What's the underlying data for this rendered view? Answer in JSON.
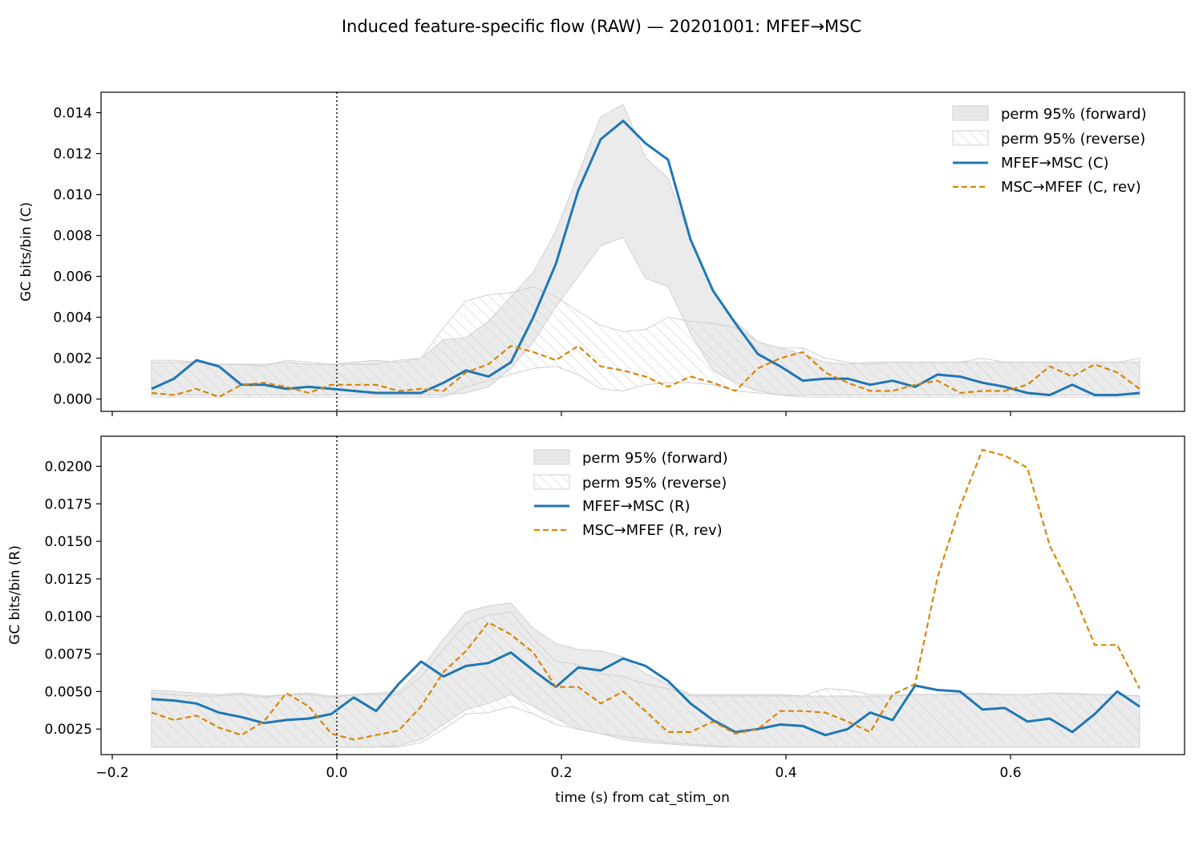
{
  "figure": {
    "title": "Induced feature-specific flow (RAW) — 20201001: MFEF→MSC",
    "xlabel": "time (s) from cat_stim_on"
  },
  "colors": {
    "forward": "#1f77b4",
    "reverse": "#d6860a",
    "band_fill": "#e8e8e8",
    "band_edge": "#d0d0d0",
    "hatch": "#c8c8c8",
    "axes": "#000000"
  },
  "chart_data": [
    {
      "type": "line",
      "ylabel": "GC bits/bin (C)",
      "xlim": [
        -0.21,
        0.755
      ],
      "ylim": [
        -0.0006,
        0.015
      ],
      "xticks": [
        -0.2,
        0.0,
        0.2,
        0.4,
        0.6
      ],
      "xtick_labels": [
        "",
        "",
        "",
        "",
        ""
      ],
      "yticks": [
        0,
        0.002,
        0.004,
        0.006,
        0.008,
        0.01,
        0.012,
        0.014
      ],
      "ytick_labels": [
        "0.000",
        "0.002",
        "0.004",
        "0.006",
        "0.008",
        "0.010",
        "0.012",
        "0.014"
      ],
      "vline_x": 0.0,
      "legend_placement": "top-right",
      "legend": [
        "perm 95% (forward)",
        "perm 95% (reverse)",
        "MFEF→MSC (C)",
        "MSC→MFEF (C, rev)"
      ],
      "x": [
        -0.165,
        -0.145,
        -0.125,
        -0.105,
        -0.085,
        -0.065,
        -0.045,
        -0.025,
        -0.005,
        0.015,
        0.035,
        0.055,
        0.075,
        0.095,
        0.115,
        0.135,
        0.155,
        0.175,
        0.195,
        0.215,
        0.235,
        0.255,
        0.275,
        0.295,
        0.315,
        0.335,
        0.355,
        0.375,
        0.395,
        0.415,
        0.435,
        0.455,
        0.475,
        0.495,
        0.515,
        0.535,
        0.555,
        0.575,
        0.595,
        0.615,
        0.635,
        0.655,
        0.675,
        0.695,
        0.715
      ],
      "bands": [
        {
          "name": "perm 95% (forward)",
          "lower": [
            0.0002,
            0.0002,
            0.0002,
            0.0002,
            0.0002,
            0.0002,
            0.0002,
            0.0002,
            0.0002,
            0.0002,
            0.0002,
            0.0002,
            0.0002,
            0.0002,
            0.0003,
            0.0006,
            0.0015,
            0.0028,
            0.0045,
            0.006,
            0.0075,
            0.0079,
            0.0059,
            0.0055,
            0.0032,
            0.0014,
            0.0008,
            0.0004,
            0.0002,
            0.0002,
            0.0002,
            0.0002,
            0.0002,
            0.0002,
            0.0002,
            0.0002,
            0.0002,
            0.0002,
            0.0002,
            0.0002,
            0.0002,
            0.0002,
            0.0002,
            0.0002,
            0.0002
          ],
          "upper": [
            0.0018,
            0.0018,
            0.0018,
            0.0017,
            0.0017,
            0.0017,
            0.0018,
            0.0017,
            0.0017,
            0.0018,
            0.0019,
            0.0018,
            0.002,
            0.0029,
            0.003,
            0.0038,
            0.005,
            0.0062,
            0.0082,
            0.011,
            0.0138,
            0.0144,
            0.0118,
            0.0108,
            0.0078,
            0.0053,
            0.0038,
            0.0028,
            0.0025,
            0.0022,
            0.0018,
            0.0017,
            0.0018,
            0.0018,
            0.0018,
            0.0018,
            0.0018,
            0.0018,
            0.0018,
            0.0018,
            0.0018,
            0.0018,
            0.0018,
            0.0018,
            0.0018
          ]
        },
        {
          "name": "perm 95% (reverse)",
          "lower": [
            0.0001,
            0.0001,
            0.0001,
            0.0001,
            0.0001,
            0.0001,
            0.0001,
            0.0001,
            0.0001,
            0.0001,
            0.0001,
            0.0001,
            0.0001,
            0.0001,
            0.0006,
            0.0009,
            0.0012,
            0.0015,
            0.0016,
            0.0012,
            0.0005,
            0.0004,
            0.0007,
            0.0008,
            0.0008,
            0.0007,
            0.0004,
            0.0003,
            0.0002,
            0.0001,
            0.0001,
            0.0001,
            0.0001,
            0.0001,
            0.0001,
            0.0001,
            0.0001,
            0.0001,
            0.0001,
            0.0001,
            0.0001,
            0.0001,
            0.0001,
            0.0001,
            0.0001
          ],
          "upper": [
            0.0019,
            0.0019,
            0.0018,
            0.0017,
            0.0017,
            0.0016,
            0.0019,
            0.0018,
            0.0017,
            0.0017,
            0.0017,
            0.0019,
            0.002,
            0.0035,
            0.0048,
            0.0051,
            0.0052,
            0.0055,
            0.005,
            0.0043,
            0.0036,
            0.0033,
            0.0034,
            0.004,
            0.0038,
            0.0037,
            0.0035,
            0.0028,
            0.0025,
            0.0025,
            0.002,
            0.0018,
            0.0017,
            0.0018,
            0.0018,
            0.0018,
            0.0018,
            0.002,
            0.0018,
            0.0018,
            0.0018,
            0.0018,
            0.0018,
            0.0018,
            0.002
          ]
        }
      ],
      "series": [
        {
          "name": "MFEF→MSC (C)",
          "style": "solid",
          "values": [
            0.0005,
            0.001,
            0.0019,
            0.0016,
            0.0007,
            0.0007,
            0.0005,
            0.0006,
            0.0005,
            0.0004,
            0.0003,
            0.0003,
            0.0003,
            0.0008,
            0.0014,
            0.0011,
            0.0018,
            0.004,
            0.0066,
            0.0102,
            0.0127,
            0.0136,
            0.0125,
            0.0117,
            0.0078,
            0.0053,
            0.0037,
            0.0022,
            0.0016,
            0.0009,
            0.001,
            0.001,
            0.0007,
            0.0009,
            0.0006,
            0.0012,
            0.0011,
            0.0008,
            0.0006,
            0.0003,
            0.0002,
            0.0007,
            0.0002,
            0.0002,
            0.0003
          ]
        },
        {
          "name": "MSC→MFEF (C, rev)",
          "style": "dashed",
          "values": [
            0.0003,
            0.0002,
            0.0005,
            0.0001,
            0.0007,
            0.0008,
            0.0006,
            0.0003,
            0.0007,
            0.0007,
            0.0007,
            0.0004,
            0.0005,
            0.0004,
            0.0013,
            0.0017,
            0.0026,
            0.0023,
            0.0019,
            0.0026,
            0.0016,
            0.0014,
            0.0011,
            0.0006,
            0.0011,
            0.0008,
            0.0004,
            0.0015,
            0.002,
            0.0023,
            0.0013,
            0.0008,
            0.0004,
            0.0004,
            0.0007,
            0.0009,
            0.0003,
            0.0004,
            0.0004,
            0.0007,
            0.0016,
            0.0011,
            0.0017,
            0.0013,
            0.0005
          ]
        }
      ]
    },
    {
      "type": "line",
      "ylabel": "GC bits/bin (R)",
      "xlim": [
        -0.21,
        0.755
      ],
      "ylim": [
        0.0008,
        0.022
      ],
      "xticks": [
        -0.2,
        0.0,
        0.2,
        0.4,
        0.6
      ],
      "xtick_labels": [
        "−0.2",
        "0.0",
        "0.2",
        "0.4",
        "0.6"
      ],
      "yticks": [
        0.0025,
        0.005,
        0.0075,
        0.01,
        0.0125,
        0.015,
        0.0175,
        0.02
      ],
      "ytick_labels": [
        "0.0025",
        "0.0050",
        "0.0075",
        "0.0100",
        "0.0125",
        "0.0150",
        "0.0175",
        "0.0200"
      ],
      "vline_x": 0.0,
      "legend_placement": "top-center",
      "legend": [
        "perm 95% (forward)",
        "perm 95% (reverse)",
        "MFEF→MSC (R)",
        "MSC→MFEF (R, rev)"
      ],
      "x": [
        -0.165,
        -0.145,
        -0.125,
        -0.105,
        -0.085,
        -0.065,
        -0.045,
        -0.025,
        -0.005,
        0.015,
        0.035,
        0.055,
        0.075,
        0.095,
        0.115,
        0.135,
        0.155,
        0.175,
        0.195,
        0.215,
        0.235,
        0.255,
        0.275,
        0.295,
        0.315,
        0.335,
        0.355,
        0.375,
        0.395,
        0.415,
        0.435,
        0.455,
        0.475,
        0.495,
        0.515,
        0.535,
        0.555,
        0.575,
        0.595,
        0.615,
        0.635,
        0.655,
        0.675,
        0.695,
        0.715
      ],
      "bands": [
        {
          "name": "perm 95% (forward)",
          "lower": [
            0.0013,
            0.0013,
            0.0013,
            0.0013,
            0.0013,
            0.0013,
            0.0013,
            0.0013,
            0.0013,
            0.0013,
            0.0013,
            0.0014,
            0.0018,
            0.0028,
            0.0038,
            0.0042,
            0.0048,
            0.004,
            0.0032,
            0.0025,
            0.0022,
            0.0018,
            0.0016,
            0.0015,
            0.0014,
            0.0013,
            0.0013,
            0.0013,
            0.0013,
            0.0013,
            0.0013,
            0.0013,
            0.0013,
            0.0013,
            0.0013,
            0.0013,
            0.0013,
            0.0013,
            0.0013,
            0.0013,
            0.0013,
            0.0013,
            0.0013,
            0.0013,
            0.0013
          ],
          "upper": [
            0.0051,
            0.005,
            0.0049,
            0.0048,
            0.0049,
            0.0047,
            0.0048,
            0.0049,
            0.0047,
            0.0048,
            0.0049,
            0.005,
            0.0065,
            0.0085,
            0.0103,
            0.0107,
            0.0109,
            0.0092,
            0.0082,
            0.0078,
            0.0077,
            0.0073,
            0.0062,
            0.0055,
            0.0048,
            0.0048,
            0.0048,
            0.0048,
            0.0048,
            0.0047,
            0.0047,
            0.0047,
            0.0047,
            0.0047,
            0.0048,
            0.0048,
            0.0049,
            0.0048,
            0.0048,
            0.0048,
            0.0049,
            0.0048,
            0.0048,
            0.0048,
            0.0047
          ]
        },
        {
          "name": "perm 95% (reverse)",
          "lower": [
            0.0013,
            0.0013,
            0.0013,
            0.0013,
            0.0013,
            0.0013,
            0.0013,
            0.0013,
            0.0013,
            0.0013,
            0.0013,
            0.0013,
            0.0016,
            0.0025,
            0.0035,
            0.0036,
            0.004,
            0.0035,
            0.0028,
            0.0025,
            0.0022,
            0.002,
            0.0018,
            0.0016,
            0.0015,
            0.0014,
            0.0013,
            0.0013,
            0.0013,
            0.0013,
            0.0013,
            0.0013,
            0.0013,
            0.0013,
            0.0013,
            0.0013,
            0.0013,
            0.0013,
            0.0013,
            0.0013,
            0.0013,
            0.0013,
            0.0013,
            0.0013,
            0.0013
          ],
          "upper": [
            0.0049,
            0.0048,
            0.0047,
            0.0047,
            0.0048,
            0.0046,
            0.0048,
            0.0048,
            0.0046,
            0.0048,
            0.0048,
            0.0048,
            0.006,
            0.0078,
            0.0095,
            0.0101,
            0.0103,
            0.0085,
            0.007,
            0.0068,
            0.0062,
            0.006,
            0.0055,
            0.0052,
            0.0047,
            0.0047,
            0.0047,
            0.0047,
            0.0047,
            0.0047,
            0.0052,
            0.0051,
            0.0048,
            0.0048,
            0.0048,
            0.0048,
            0.0048,
            0.0049,
            0.0048,
            0.0048,
            0.0049,
            0.0049,
            0.0048,
            0.0048,
            0.0047
          ]
        }
      ],
      "series": [
        {
          "name": "MFEF→MSC (R)",
          "style": "solid",
          "values": [
            0.0045,
            0.0044,
            0.0042,
            0.0036,
            0.0033,
            0.0029,
            0.0031,
            0.0032,
            0.0035,
            0.0046,
            0.0037,
            0.0055,
            0.007,
            0.006,
            0.0067,
            0.0069,
            0.0076,
            0.0064,
            0.0053,
            0.0066,
            0.0064,
            0.0072,
            0.0067,
            0.0057,
            0.0042,
            0.0031,
            0.0023,
            0.0025,
            0.0028,
            0.0027,
            0.0021,
            0.0025,
            0.0036,
            0.0031,
            0.0054,
            0.0051,
            0.005,
            0.0038,
            0.0039,
            0.003,
            0.0032,
            0.0023,
            0.0035,
            0.005,
            0.004
          ]
        },
        {
          "name": "MSC→MFEF (R, rev)",
          "style": "dashed",
          "values": [
            0.0036,
            0.0031,
            0.0034,
            0.0026,
            0.0021,
            0.003,
            0.0049,
            0.004,
            0.0022,
            0.0018,
            0.0021,
            0.0024,
            0.004,
            0.0063,
            0.0077,
            0.0096,
            0.0088,
            0.0076,
            0.0053,
            0.0053,
            0.0042,
            0.005,
            0.0037,
            0.0023,
            0.0023,
            0.003,
            0.0022,
            0.0025,
            0.0037,
            0.0037,
            0.0036,
            0.003,
            0.0023,
            0.0048,
            0.0055,
            0.0126,
            0.0173,
            0.0211,
            0.0207,
            0.0199,
            0.0147,
            0.0117,
            0.0081,
            0.0081,
            0.0052
          ]
        }
      ]
    }
  ]
}
